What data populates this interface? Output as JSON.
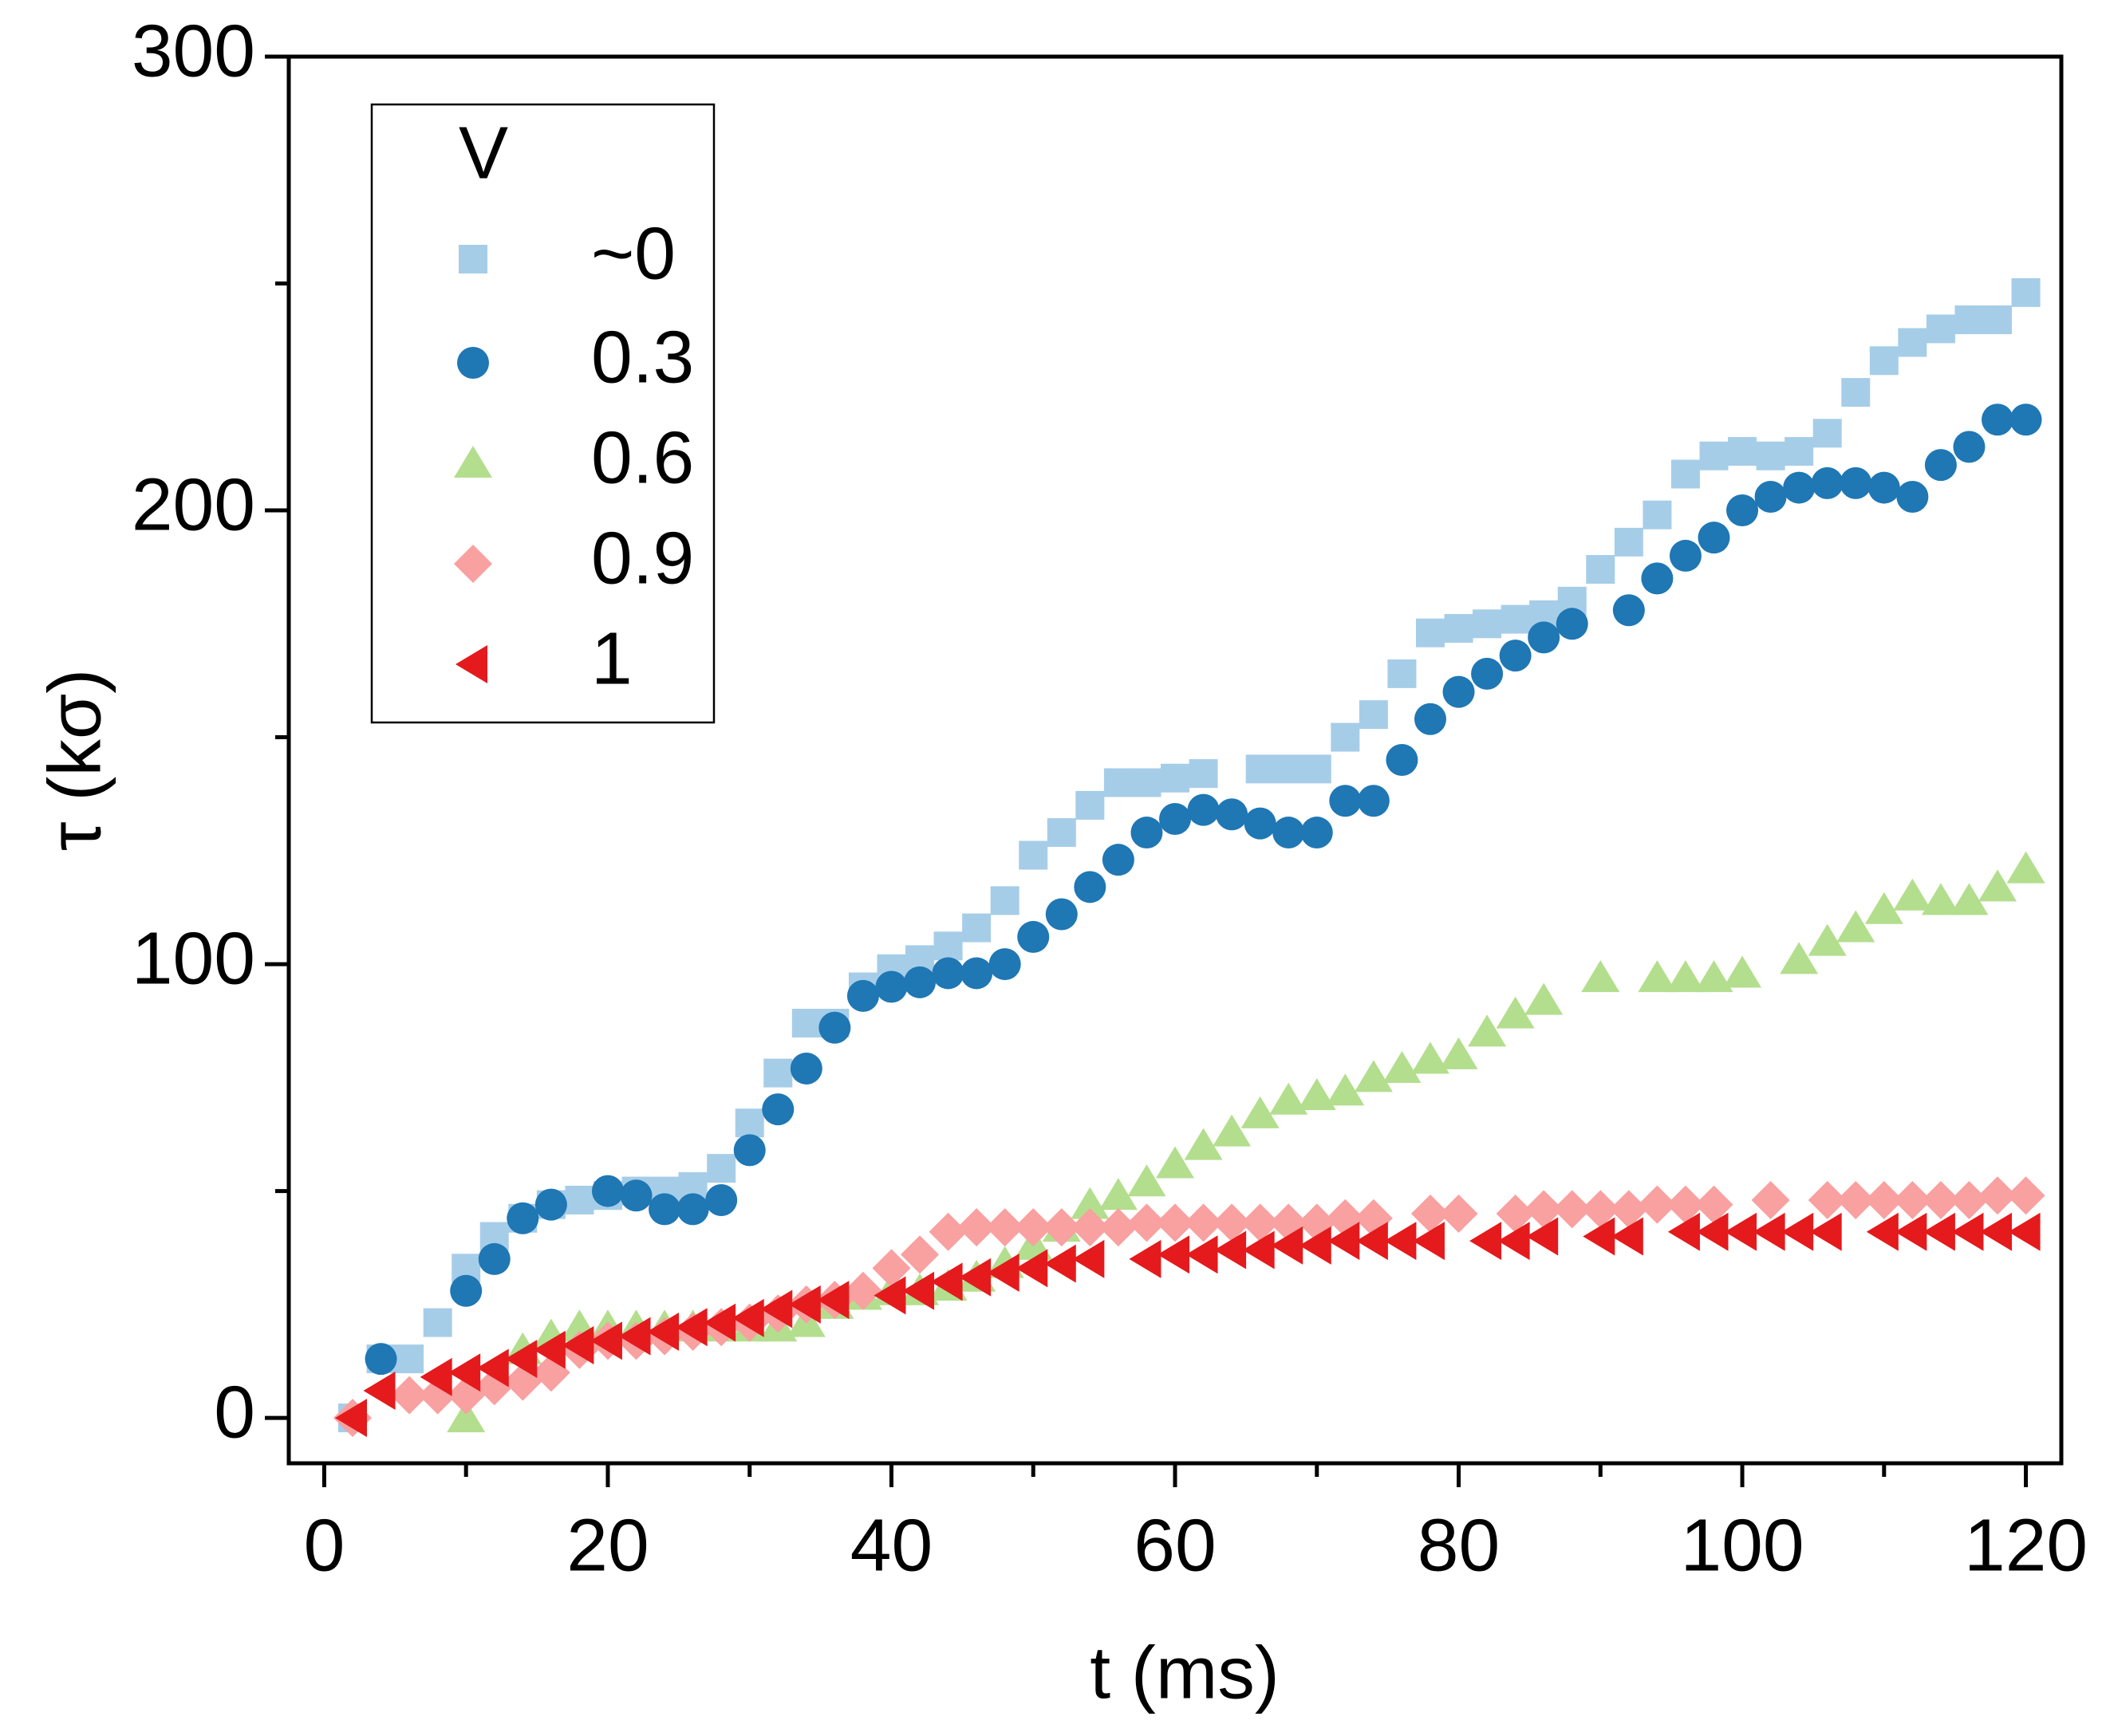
{
  "chart_data": {
    "type": "scatter",
    "xlabel": "t (ms)",
    "ylabel": "τ (kσ)",
    "xlim": [
      -2.5,
      122.5
    ],
    "xticks": [
      0,
      20,
      40,
      60,
      80,
      100,
      120
    ],
    "xminor": [
      10,
      30,
      50,
      70,
      90,
      110
    ],
    "ylim": [
      -10,
      300
    ],
    "yticks": [
      0,
      100,
      200,
      300
    ],
    "yminor": [
      50,
      150,
      250
    ],
    "legend_title": "V",
    "legend": "upper left",
    "series": [
      {
        "name": "~0",
        "color": "#a6cde8",
        "marker": "square",
        "x": [
          2,
          4,
          6,
          8,
          10,
          12,
          14,
          16,
          18,
          20,
          22,
          24,
          26,
          28,
          30,
          32,
          34,
          36,
          38,
          40,
          42,
          44,
          46,
          48,
          50,
          52,
          54,
          56,
          58,
          60,
          62,
          66,
          68,
          70,
          72,
          74,
          76,
          78,
          80,
          82,
          84,
          86,
          88,
          90,
          92,
          94,
          96,
          98,
          100,
          102,
          104,
          106,
          108,
          110,
          112,
          114,
          116,
          118,
          120
        ],
        "values": [
          0,
          13,
          13,
          21,
          33,
          40,
          44,
          47,
          48,
          49,
          50,
          50,
          51,
          55,
          65,
          76,
          87,
          87,
          95,
          99,
          101,
          104,
          108,
          114,
          124,
          129,
          135,
          140,
          140,
          141,
          142,
          143,
          143,
          143,
          150,
          155,
          164,
          173,
          174,
          175,
          176,
          177,
          180,
          187,
          193,
          199,
          208,
          212,
          213,
          212,
          213,
          217,
          226,
          233,
          237,
          240,
          242,
          242,
          248
        ]
      },
      {
        "name": "0.3",
        "color": "#1f77b4",
        "marker": "circle",
        "x": [
          4,
          10,
          12,
          14,
          16,
          20,
          22,
          24,
          26,
          28,
          30,
          32,
          34,
          36,
          38,
          40,
          42,
          44,
          46,
          48,
          50,
          52,
          54,
          56,
          58,
          60,
          62,
          64,
          66,
          68,
          70,
          72,
          74,
          76,
          78,
          80,
          82,
          84,
          86,
          88,
          92,
          94,
          96,
          98,
          100,
          102,
          104,
          106,
          108,
          110,
          112,
          114,
          116,
          118,
          120
        ],
        "values": [
          13,
          28,
          35,
          44,
          47,
          50,
          49,
          46,
          46,
          48,
          59,
          68,
          77,
          86,
          93,
          95,
          96,
          98,
          98,
          100,
          106,
          111,
          117,
          123,
          129,
          132,
          134,
          133,
          131,
          129,
          129,
          136,
          136,
          145,
          154,
          160,
          164,
          168,
          172,
          175,
          178,
          185,
          190,
          194,
          200,
          203,
          205,
          206,
          206,
          205,
          203,
          210,
          214,
          220,
          220
        ]
      },
      {
        "name": "0.6",
        "color": "#b3de8e",
        "marker": "triangle-up",
        "x": [
          10,
          14,
          16,
          18,
          20,
          22,
          24,
          26,
          28,
          30,
          32,
          34,
          36,
          38,
          40,
          42,
          44,
          46,
          48,
          50,
          52,
          54,
          56,
          58,
          60,
          62,
          64,
          66,
          68,
          70,
          72,
          74,
          76,
          78,
          80,
          82,
          84,
          86,
          90,
          94,
          96,
          98,
          100,
          104,
          106,
          108,
          110,
          112,
          114,
          116,
          118,
          120
        ],
        "values": [
          0,
          15,
          18,
          20,
          20,
          20,
          20,
          20,
          20,
          20,
          20,
          21,
          25,
          27,
          28,
          28,
          29,
          31,
          34,
          38,
          42,
          47,
          49,
          52,
          56,
          60,
          63,
          67,
          70,
          71,
          72,
          75,
          77,
          79,
          80,
          85,
          89,
          92,
          97,
          97,
          97,
          97,
          98,
          101,
          105,
          108,
          112,
          115,
          114,
          114,
          117,
          121
        ]
      },
      {
        "name": "0.9",
        "color": "#f9a0a0",
        "marker": "diamond",
        "x": [
          2,
          6,
          8,
          10,
          12,
          14,
          16,
          18,
          20,
          22,
          24,
          26,
          28,
          30,
          32,
          34,
          36,
          38,
          40,
          42,
          44,
          46,
          48,
          50,
          52,
          54,
          56,
          58,
          60,
          62,
          64,
          66,
          68,
          70,
          72,
          74,
          78,
          80,
          84,
          86,
          88,
          90,
          92,
          94,
          96,
          98,
          102,
          106,
          108,
          110,
          112,
          114,
          116,
          118,
          120
        ],
        "values": [
          0,
          5,
          5,
          5,
          7,
          8,
          10,
          15,
          17,
          17,
          18,
          19,
          20,
          21,
          23,
          25,
          26,
          28,
          33,
          36,
          41,
          42,
          42,
          42,
          42,
          42,
          42,
          43,
          43,
          43,
          43,
          43,
          43,
          43,
          44,
          44,
          45,
          45,
          45,
          46,
          46,
          46,
          46,
          47,
          47,
          47,
          48,
          48,
          48,
          48,
          48,
          48,
          48,
          49,
          49
        ]
      },
      {
        "name": "1",
        "color": "#e41a1c",
        "marker": "triangle-left",
        "x": [
          2,
          4,
          8,
          10,
          12,
          14,
          16,
          18,
          20,
          22,
          24,
          26,
          28,
          30,
          32,
          34,
          36,
          40,
          42,
          44,
          46,
          48,
          50,
          52,
          54,
          58,
          60,
          62,
          64,
          66,
          68,
          70,
          72,
          74,
          76,
          78,
          82,
          84,
          86,
          90,
          92,
          96,
          98,
          100,
          102,
          104,
          106,
          110,
          112,
          114,
          116,
          118,
          120
        ],
        "values": [
          0,
          6,
          9,
          10,
          11,
          13,
          15,
          16,
          17,
          18,
          19,
          20,
          21,
          22,
          24,
          25,
          26,
          27,
          28,
          30,
          31,
          32,
          33,
          34,
          35,
          35,
          36,
          36,
          37,
          37,
          38,
          38,
          39,
          39,
          39,
          39,
          39,
          39,
          40,
          40,
          40,
          41,
          41,
          41,
          41,
          41,
          41,
          41,
          41,
          41,
          41,
          41,
          41
        ]
      }
    ]
  }
}
